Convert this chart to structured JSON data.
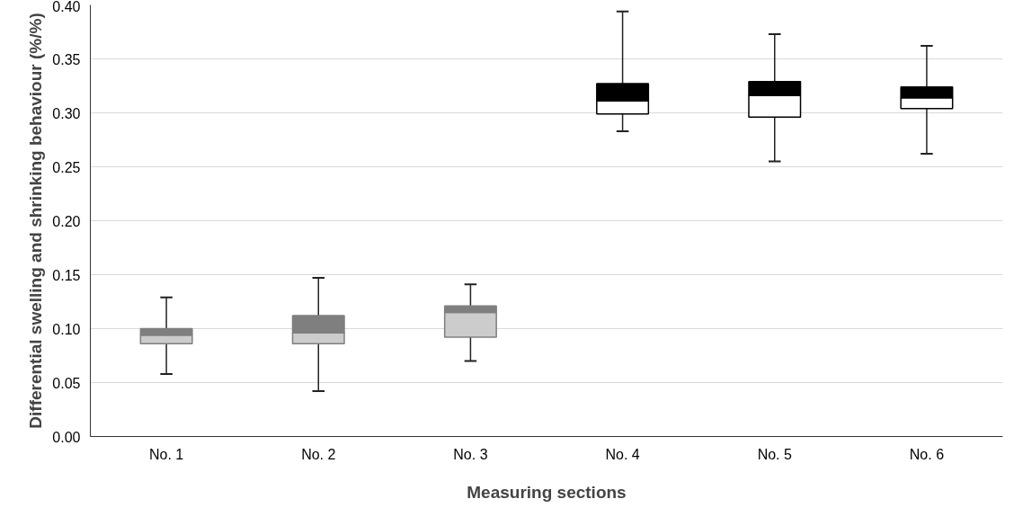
{
  "chart_data": {
    "type": "box",
    "xlabel": "Measuring sections",
    "ylabel": "Differential swelling and shrinking behaviour (%/%)",
    "categories": [
      "No. 1",
      "No. 2",
      "No. 3",
      "No. 4",
      "No. 5",
      "No. 6"
    ],
    "ylim": [
      0,
      0.4
    ],
    "yticks": [
      {
        "value": 0,
        "label": "0.00"
      },
      {
        "value": 0.05,
        "label": "0.05"
      },
      {
        "value": 0.1,
        "label": "0.10"
      },
      {
        "value": 0.15,
        "label": "0.15"
      },
      {
        "value": 0.2,
        "label": "0.20"
      },
      {
        "value": 0.25,
        "label": "0.25"
      },
      {
        "value": 0.3,
        "label": "0.30"
      },
      {
        "value": 0.35,
        "label": "0.35"
      },
      {
        "value": 0.4,
        "label": "0.40"
      }
    ],
    "grid": "y",
    "series": [
      {
        "color": "#7f7f7f",
        "colors": [
          "#cccccc",
          "#cccccc",
          "#cccccc",
          null,
          null,
          null
        ],
        "boxes": [
          {
            "low": 0.058,
            "q1": 0.086,
            "median": 0.094,
            "q3": 0.1,
            "high": 0.129
          },
          {
            "low": 0.042,
            "q1": 0.086,
            "median": 0.096,
            "q3": 0.112,
            "high": 0.147
          },
          {
            "low": 0.07,
            "q1": 0.092,
            "median": 0.115,
            "q3": 0.121,
            "high": 0.141
          },
          null,
          null,
          null
        ]
      },
      {
        "color": "#000000",
        "colors": [
          null,
          null,
          null,
          "#ffffff",
          "#ffffff",
          "#ffffff"
        ],
        "boxes": [
          null,
          null,
          null,
          {
            "low": 0.283,
            "q1": 0.299,
            "median": 0.311,
            "q3": 0.327,
            "high": 0.394
          },
          {
            "low": 0.255,
            "q1": 0.296,
            "median": 0.316,
            "q3": 0.329,
            "high": 0.373
          },
          {
            "low": 0.262,
            "q1": 0.304,
            "median": 0.314,
            "q3": 0.324,
            "high": 0.362
          }
        ]
      }
    ]
  }
}
